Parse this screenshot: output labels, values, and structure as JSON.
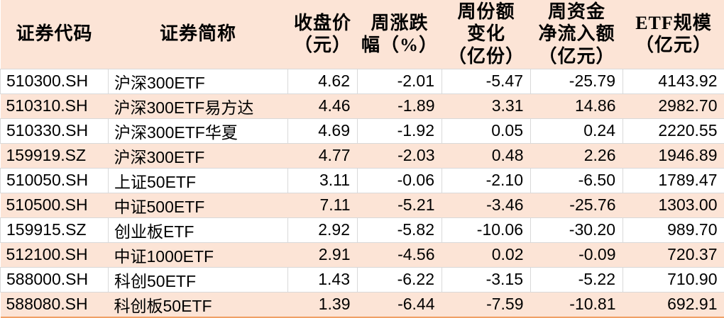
{
  "colors": {
    "header_fill": "#fce4d6",
    "alternate_row_fill": "#fce4d6",
    "gridline": "#d9d9d9",
    "bottom_border": "#f0a066",
    "text": "#000000"
  },
  "chart_data": {
    "type": "table",
    "title": "",
    "columns": [
      {
        "key": "code",
        "label": "证券代码"
      },
      {
        "key": "name",
        "label": "证券简称"
      },
      {
        "key": "close",
        "label": "收盘价\n（元）"
      },
      {
        "key": "weekly_change",
        "label": "周涨跌\n幅（%）"
      },
      {
        "key": "share_change",
        "label": "周份额\n变化\n（亿份）"
      },
      {
        "key": "net_inflow",
        "label": "周资金\n净流入额\n（亿元）"
      },
      {
        "key": "scale",
        "label": "ETF规模\n（亿元）"
      }
    ],
    "rows": [
      {
        "code": "510300.SH",
        "name": "沪深300ETF",
        "close": "4.62",
        "weekly_change": "-2.01",
        "share_change": "-5.47",
        "net_inflow": "-25.79",
        "scale": "4143.92"
      },
      {
        "code": "510310.SH",
        "name": "沪深300ETF易方达",
        "close": "4.46",
        "weekly_change": "-1.89",
        "share_change": "3.31",
        "net_inflow": "14.86",
        "scale": "2982.70"
      },
      {
        "code": "510330.SH",
        "name": "沪深300ETF华夏",
        "close": "4.69",
        "weekly_change": "-1.92",
        "share_change": "0.05",
        "net_inflow": "0.24",
        "scale": "2220.55"
      },
      {
        "code": "159919.SZ",
        "name": "沪深300ETF",
        "close": "4.77",
        "weekly_change": "-2.03",
        "share_change": "0.48",
        "net_inflow": "2.26",
        "scale": "1946.89"
      },
      {
        "code": "510050.SH",
        "name": "上证50ETF",
        "close": "3.11",
        "weekly_change": "-0.06",
        "share_change": "-2.10",
        "net_inflow": "-6.50",
        "scale": "1789.47"
      },
      {
        "code": "510500.SH",
        "name": "中证500ETF",
        "close": "7.11",
        "weekly_change": "-5.21",
        "share_change": "-3.46",
        "net_inflow": "-25.76",
        "scale": "1303.00"
      },
      {
        "code": "159915.SZ",
        "name": "创业板ETF",
        "close": "2.92",
        "weekly_change": "-5.82",
        "share_change": "-10.06",
        "net_inflow": "-30.20",
        "scale": "989.70"
      },
      {
        "code": "512100.SH",
        "name": "中证1000ETF",
        "close": "2.91",
        "weekly_change": "-4.56",
        "share_change": "0.02",
        "net_inflow": "-0.09",
        "scale": "720.37"
      },
      {
        "code": "588000.SH",
        "name": "科创50ETF",
        "close": "1.43",
        "weekly_change": "-6.22",
        "share_change": "-3.15",
        "net_inflow": "-5.22",
        "scale": "710.90"
      },
      {
        "code": "588080.SH",
        "name": "科创板50ETF",
        "close": "1.39",
        "weekly_change": "-6.44",
        "share_change": "-7.59",
        "net_inflow": "-10.81",
        "scale": "692.91"
      }
    ]
  }
}
